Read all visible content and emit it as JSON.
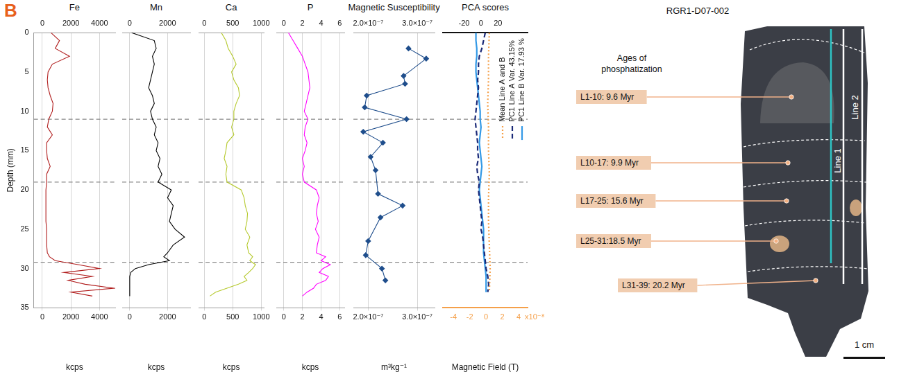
{
  "panel_label": "B",
  "chart_data": [
    {
      "type": "line",
      "title": "Fe",
      "x_label": "kcps",
      "y_label": "Depth (mm)",
      "xlim": [
        -600,
        5100
      ],
      "xticks": [
        0,
        2000,
        4000
      ],
      "x2lim": [
        -600,
        5100
      ],
      "x2ticks": [
        0,
        2000,
        4000
      ],
      "ylim": [
        35,
        0
      ],
      "yticks": [
        0,
        5,
        10,
        15,
        20,
        25,
        30,
        35
      ],
      "grid": true,
      "hlines": [
        11,
        19,
        29.2
      ],
      "series": [
        {
          "color": "#b01c1c",
          "x": [
            600,
            1200,
            900,
            1900,
            700,
            400,
            350,
            400,
            550,
            750,
            700,
            450,
            350,
            700,
            300,
            300,
            350,
            550,
            300,
            300,
            250,
            250,
            250,
            250,
            250,
            300,
            300,
            300,
            350,
            500,
            900,
            2500,
            4000,
            1500,
            3500,
            1800,
            3000,
            5000,
            2000,
            3500
          ],
          "y": [
            0,
            1,
            2,
            3,
            4,
            5,
            6,
            7,
            8,
            9,
            10,
            11,
            12,
            13,
            14,
            15,
            16,
            17,
            18,
            19,
            20,
            21,
            22,
            23,
            24,
            25,
            26,
            27,
            28,
            28.5,
            29,
            29.5,
            30,
            30.5,
            31,
            31.5,
            32,
            32.5,
            33,
            33.5
          ]
        }
      ]
    },
    {
      "type": "line",
      "title": "Mn",
      "x_label": "kcps",
      "xlim": [
        -400,
        3200
      ],
      "xticks": [
        0,
        2000
      ],
      "x2lim": [
        -400,
        3200
      ],
      "x2ticks": [
        0,
        2000
      ],
      "ylim": [
        35,
        0
      ],
      "tick_labels": "x",
      "grid": true,
      "hlines": [
        11,
        19,
        29.2
      ],
      "series": [
        {
          "color": "#000000",
          "x": [
            100,
            1300,
            1400,
            1200,
            1300,
            1200,
            1100,
            1000,
            1200,
            1300,
            1100,
            1200,
            1400,
            1300,
            1500,
            1400,
            1600,
            1500,
            1700,
            1500,
            2200,
            2000,
            2300,
            2200,
            2100,
            2400,
            2900,
            2300,
            2000,
            1800,
            2100,
            1000,
            300,
            50,
            0,
            0,
            0,
            0,
            0,
            0
          ],
          "y": [
            0,
            1,
            2,
            3,
            4,
            5,
            6,
            7,
            8,
            9,
            10,
            11,
            12,
            13,
            14,
            15,
            16,
            17,
            18,
            19,
            20,
            21,
            22,
            23,
            24,
            25,
            26,
            27,
            28,
            28.5,
            29,
            29.5,
            30,
            30.5,
            31,
            31.5,
            32,
            32.5,
            33,
            33.5
          ]
        }
      ]
    },
    {
      "type": "line",
      "title": "Ca",
      "x_label": "kcps",
      "xlim": [
        -100,
        1050
      ],
      "xticks": [
        0,
        500,
        1000
      ],
      "x2lim": [
        -100,
        1050
      ],
      "x2ticks": [
        0,
        500,
        1000
      ],
      "ylim": [
        35,
        0
      ],
      "tick_labels": "x",
      "grid": true,
      "hlines": [
        11,
        19,
        29.2
      ],
      "series": [
        {
          "color": "#b5c92c",
          "x": [
            300,
            380,
            420,
            500,
            560,
            480,
            520,
            600,
            620,
            560,
            520,
            520,
            480,
            520,
            400,
            380,
            350,
            400,
            380,
            400,
            650,
            700,
            720,
            760,
            750,
            720,
            800,
            750,
            780,
            850,
            800,
            900,
            850,
            780,
            700,
            750,
            600,
            400,
            200,
            100
          ],
          "y": [
            0,
            1,
            2,
            3,
            4,
            5,
            6,
            7,
            8,
            9,
            10,
            11,
            12,
            13,
            14,
            15,
            16,
            17,
            18,
            19,
            20,
            21,
            22,
            23,
            24,
            25,
            26,
            27,
            28,
            28.5,
            29,
            29.5,
            30,
            30.5,
            31,
            31.5,
            32,
            32.5,
            33,
            33.5
          ]
        }
      ]
    },
    {
      "type": "line",
      "title": "P",
      "x_label": "kcps",
      "xlim": [
        -0.8,
        6.5
      ],
      "xticks": [
        0,
        2,
        4,
        6
      ],
      "x2lim": [
        -0.8,
        6.5
      ],
      "x2ticks": [
        0,
        2,
        4,
        6
      ],
      "ylim": [
        35,
        0
      ],
      "tick_labels": "x",
      "grid": true,
      "hlines": [
        11,
        19,
        29.2
      ],
      "series": [
        {
          "color": "#ff00ff",
          "x": [
            0.5,
            1.0,
            1.5,
            2.0,
            2.3,
            2.6,
            2.7,
            2.8,
            2.6,
            2.4,
            2.2,
            2.6,
            2.3,
            2.2,
            2.5,
            2.3,
            2.0,
            2.2,
            2.0,
            2.2,
            3.5,
            3.8,
            3.6,
            3.5,
            3.7,
            3.4,
            3.8,
            3.6,
            3.5,
            4.5,
            4.0,
            5.0,
            4.2,
            3.8,
            4.8,
            4.5,
            3.5,
            3.2,
            2.5,
            2.0
          ],
          "y": [
            0,
            1,
            2,
            3,
            4,
            5,
            6,
            7,
            8,
            9,
            10,
            11,
            12,
            13,
            14,
            15,
            16,
            17,
            18,
            19,
            20,
            21,
            22,
            23,
            24,
            25,
            26,
            27,
            28,
            28.5,
            29,
            29.5,
            30,
            30.5,
            31,
            31.5,
            32,
            32.5,
            33,
            33.5
          ]
        }
      ]
    },
    {
      "type": "line",
      "title": "Magnetic Susceptibility",
      "x_label": "m³kg⁻¹",
      "xlim": [
        1.7e-07,
        3.35e-07
      ],
      "xticks": [
        {
          "value": 2e-07,
          "label": "2.0×10⁻⁷"
        },
        {
          "value": 3e-07,
          "label": "3.0×10⁻⁷"
        }
      ],
      "x2lim": [
        1.7e-07,
        3.35e-07
      ],
      "x2ticks": [
        {
          "value": 2e-07,
          "label": "2.0×10⁻⁷"
        },
        {
          "value": 3e-07,
          "label": "3.0×10⁻⁷"
        }
      ],
      "ylim": [
        35,
        0
      ],
      "tick_labels": "x",
      "grid": true,
      "hlines": [
        11,
        19,
        29.2
      ],
      "series": [
        {
          "color": "#1f4e8c",
          "marker": "diamond",
          "x": [
            2.82e-07,
            3.18e-07,
            2.72e-07,
            2.75e-07,
            1.97e-07,
            1.93e-07,
            2.78e-07,
            1.9e-07,
            2.3e-07,
            2.05e-07,
            2.15e-07,
            2.2e-07,
            2.7e-07,
            2.25e-07,
            2e-07,
            1.95e-07,
            2.28e-07,
            2.35e-07
          ],
          "y": [
            2,
            3.3,
            5.5,
            6.5,
            8,
            9.5,
            11,
            12.6,
            14,
            15.8,
            17.5,
            20.5,
            22,
            23.5,
            26.5,
            28.3,
            30,
            31.5
          ]
        }
      ]
    },
    {
      "type": "line",
      "title": "PCA scores",
      "x_label": "Magnetic Field (T)",
      "xlim": [
        -5.3,
        5.1
      ],
      "xticks": [
        -4,
        -2,
        0,
        2,
        4
      ],
      "x_multiplier": "x10⁻⁸",
      "x2lim": [
        -45,
        55
      ],
      "x2ticks": [
        -20,
        0,
        20
      ],
      "ylim": [
        35,
        0
      ],
      "tick_labels": "x",
      "grid": false,
      "legend": "right",
      "hlines": [
        11,
        19,
        29.2
      ],
      "series": [
        {
          "name": "Mean Line A and B",
          "color": "#f5a04a",
          "line_style": "dotted",
          "x": [
            0.4,
            0.3,
            0.3,
            0.2,
            0.3,
            0.3,
            0.4,
            0.3,
            0.3,
            0.4,
            0.5,
            0.4
          ],
          "y": [
            0,
            3,
            6,
            9,
            12,
            15,
            18,
            21,
            24,
            27,
            30,
            33
          ]
        },
        {
          "name": "PC1 Line A Var. 43.15%",
          "color": "#1b2a78",
          "line_style": "dashed",
          "axis": "x2",
          "x": [
            5,
            3,
            1,
            -2,
            -3,
            -3,
            -4,
            -3,
            -4,
            -5,
            -6,
            -7,
            -6,
            -5,
            -4,
            -4,
            -3,
            -5,
            -4,
            -2,
            -3,
            -2,
            -1,
            0,
            1,
            0,
            2,
            3,
            4,
            5,
            6,
            8,
            9,
            8
          ],
          "y": [
            0,
            1,
            2,
            3,
            4,
            5,
            6,
            7,
            8,
            9,
            10,
            11,
            12,
            13,
            14,
            15,
            16,
            17,
            18,
            19,
            20,
            21,
            22,
            23,
            24,
            25,
            26,
            27,
            28,
            29,
            30,
            31,
            32,
            33
          ]
        },
        {
          "name": "PC1 Line B Var. 17.93 %",
          "color": "#3399e6",
          "line_style": "solid",
          "axis": "x2",
          "x": [
            -6,
            -6,
            -5,
            -5,
            -6,
            -6,
            -5,
            -4,
            -3,
            -2,
            -1,
            -1,
            0,
            -1,
            -2,
            -1,
            0,
            1,
            0,
            -1,
            -2,
            -1,
            0,
            1,
            2,
            3,
            3,
            3,
            3,
            4,
            5,
            6,
            6,
            6
          ],
          "y": [
            0,
            1,
            2,
            3,
            4,
            5,
            6,
            7,
            8,
            9,
            10,
            11,
            12,
            13,
            14,
            15,
            16,
            17,
            18,
            19,
            20,
            21,
            22,
            23,
            24,
            25,
            26,
            27,
            28,
            29,
            30,
            31,
            32,
            33
          ]
        }
      ]
    }
  ],
  "sample": {
    "title": "RGR1-D07-002",
    "heading": "Ages of phosphatization",
    "layers": [
      "L1-10: 9.6 Myr",
      "L10-17: 9.9 Myr",
      "L17-25: 15.6 Myr",
      "L25-31:18.5 Myr",
      "L31-39: 20.2 Myr"
    ],
    "lines": [
      "Line 1",
      "Line 2"
    ],
    "scale_bar": "1 cm"
  }
}
